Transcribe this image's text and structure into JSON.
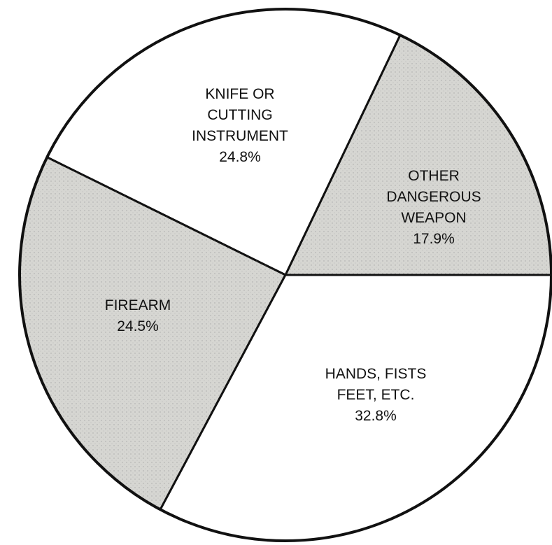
{
  "chart_data": {
    "type": "pie",
    "categories": [
      "OTHER DANGEROUS\nWEAPON",
      "KNIFE OR\nCUTTING\nINSTRUMENT",
      "FIREARM",
      "HANDS, FISTS\nFEET, ETC."
    ],
    "values": [
      17.9,
      24.8,
      24.5,
      32.8
    ],
    "value_labels": [
      "17.9%",
      "24.8%",
      "24.5%",
      "32.8%"
    ],
    "colors": [
      "#d6d6d2",
      "#ffffff",
      "#d6d6d2",
      "#ffffff"
    ]
  }
}
